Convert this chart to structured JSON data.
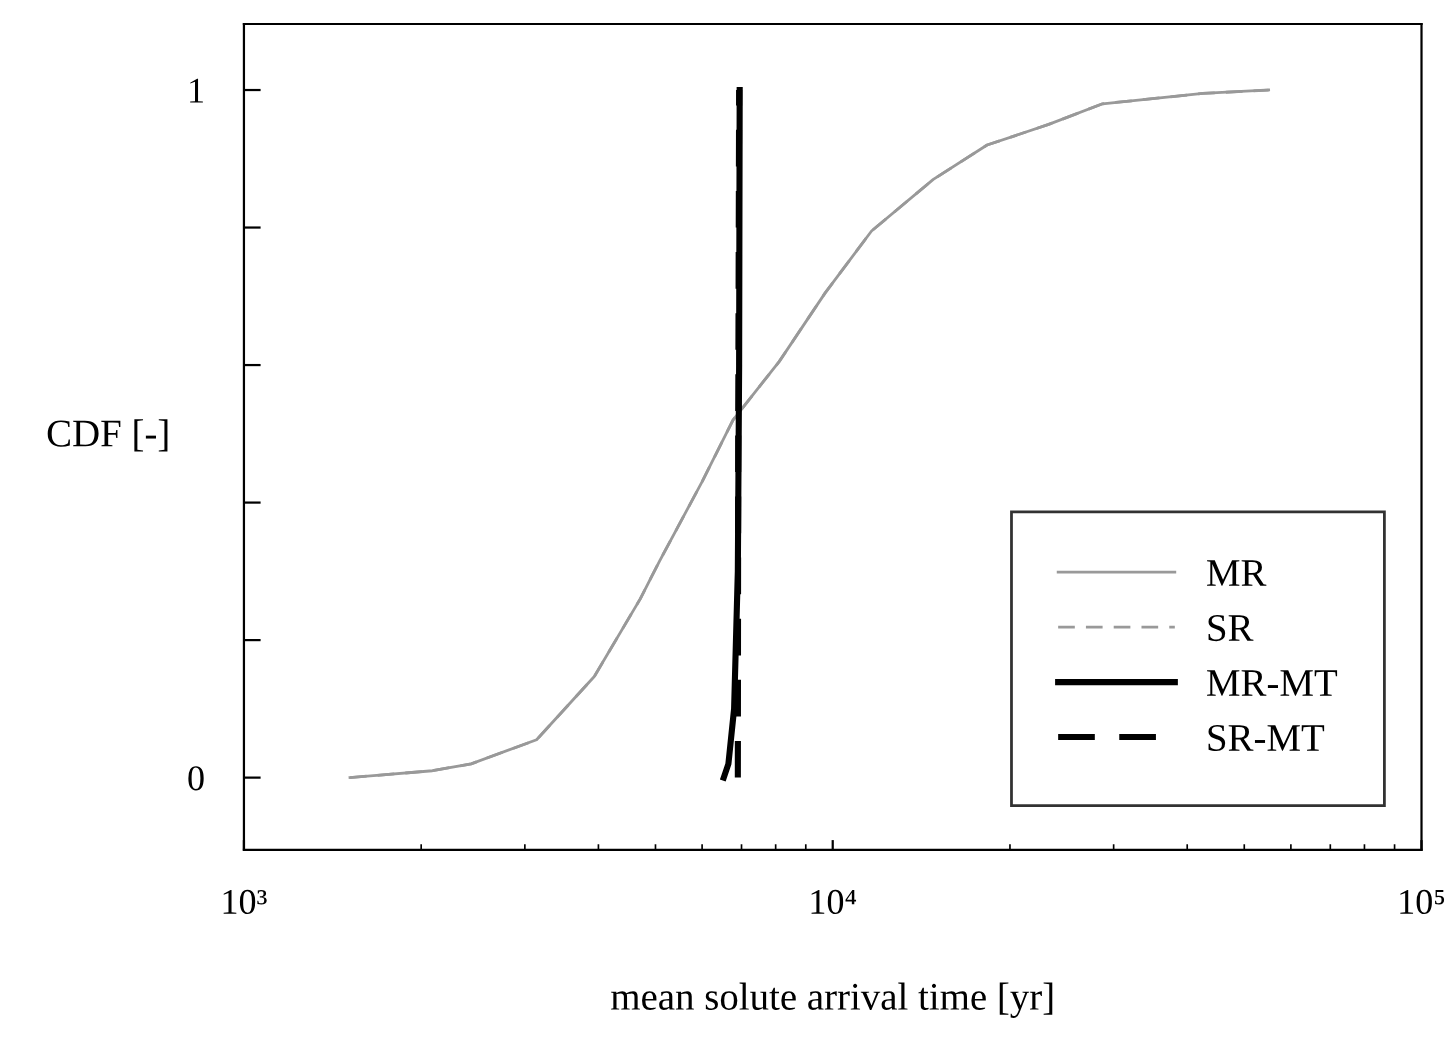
{
  "chart_data": {
    "type": "line",
    "xlabel": "mean solute arrival time [yr]",
    "ylabel": "CDF [-]",
    "log": "x",
    "xlim": [
      1000,
      100000
    ],
    "xticks": [
      {
        "value": 1000,
        "label": "10³"
      },
      {
        "value": 10000,
        "label": "10⁴"
      },
      {
        "value": 100000,
        "label": "10⁵"
      }
    ],
    "ylim": [
      -0.105,
      1.096
    ],
    "yticks": [
      0,
      {
        "value": 0.2,
        "label": null
      },
      {
        "value": 0.4,
        "label": null
      },
      {
        "value": 0.6,
        "label": null
      },
      {
        "value": 0.8,
        "label": null
      },
      1
    ],
    "grid": false,
    "legend": "bottom right",
    "series": [
      {
        "name": "MR",
        "color": "#999999",
        "line_style": "solid",
        "x": [
          1514,
          2090,
          2432,
          3141,
          3936,
          4711,
          5080,
          5998,
          6770,
          8110,
          9710,
          11640,
          14820,
          18290,
          23270,
          28730,
          42520,
          55000
        ],
        "values": [
          0,
          0.01,
          0.02,
          0.055,
          0.147,
          0.26,
          0.315,
          0.43,
          0.52,
          0.605,
          0.705,
          0.795,
          0.87,
          0.92,
          0.95,
          0.98,
          0.995,
          1.0
        ]
      },
      {
        "name": "SR",
        "color": "#999999",
        "line_style": "dashed",
        "x": [
          1514,
          2090,
          2432,
          3141,
          3936,
          4711,
          5080,
          5998,
          6770,
          8110,
          9710,
          11640,
          14820,
          18290,
          23270,
          28730,
          42520,
          55000
        ],
        "values": [
          0,
          0.01,
          0.02,
          0.055,
          0.147,
          0.26,
          0.315,
          0.43,
          0.52,
          0.605,
          0.705,
          0.795,
          0.87,
          0.92,
          0.95,
          0.98,
          0.995,
          1.0
        ]
      },
      {
        "name": "MR-MT",
        "color": "#000000",
        "line_style": "solid",
        "x": [
          6530,
          6650,
          6800,
          6900,
          6935,
          6950
        ],
        "values": [
          0,
          0.02,
          0.1,
          0.3,
          0.6,
          1.0
        ]
      },
      {
        "name": "SR-MT",
        "color": "#000000",
        "line_style": "dashed",
        "x": [
          6900,
          6910,
          6935
        ],
        "values": [
          0,
          0.5,
          1.0
        ]
      }
    ]
  }
}
